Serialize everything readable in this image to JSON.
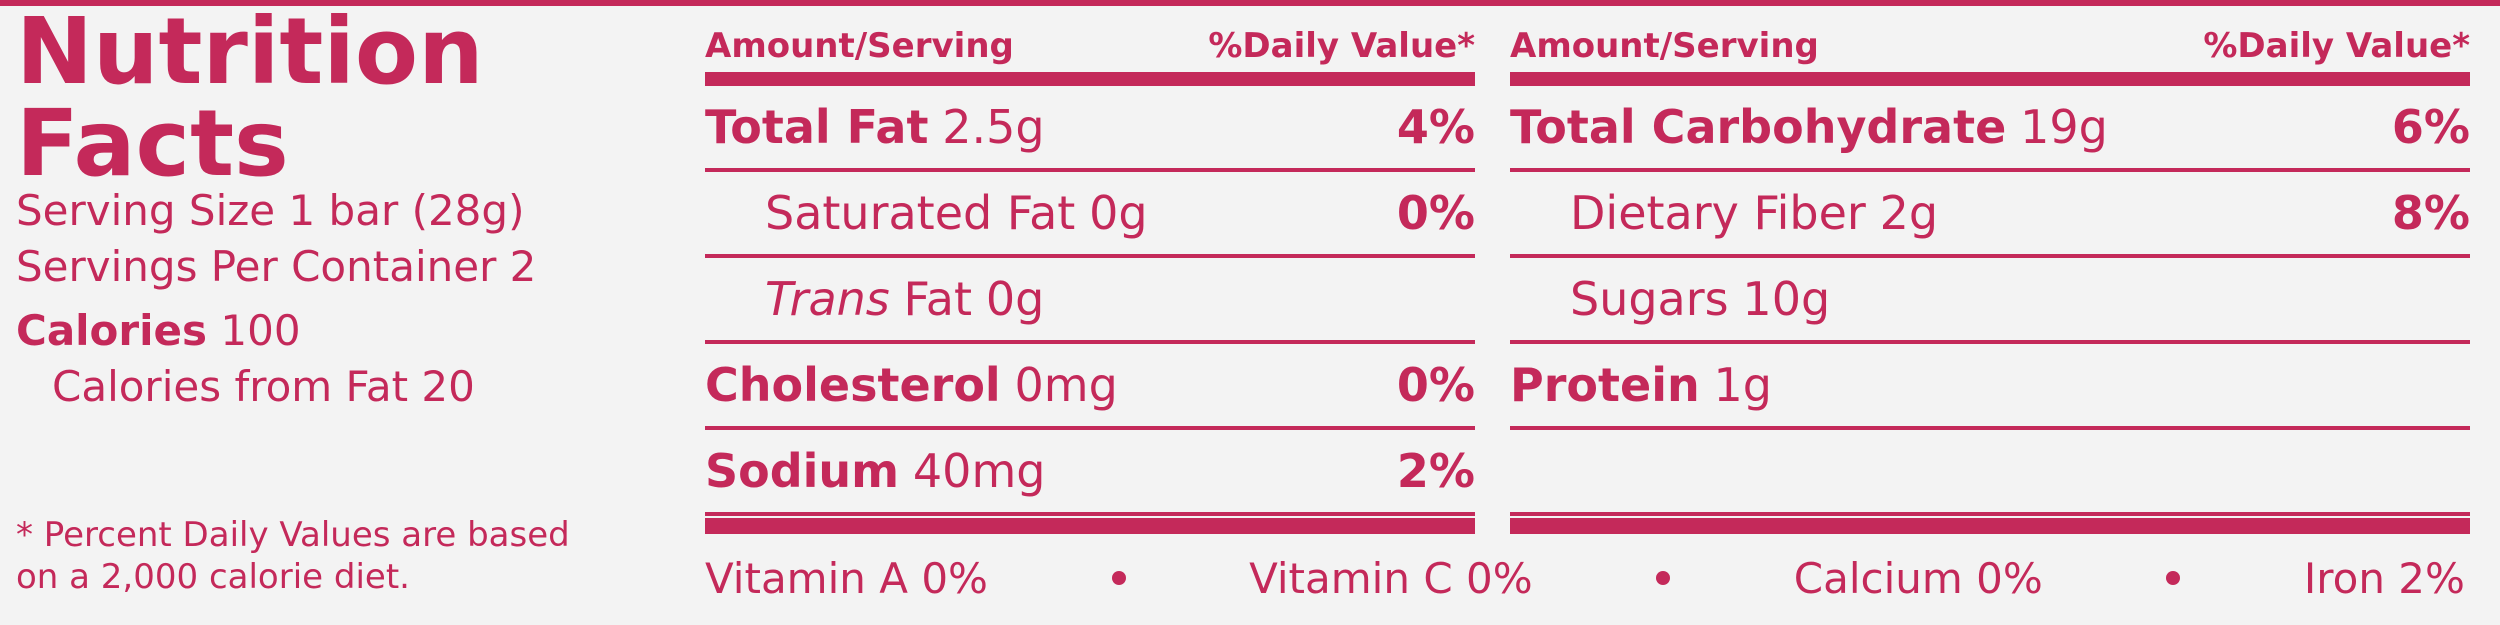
{
  "header": {
    "title": "Nutrition Facts",
    "serving_size": "Serving Size 1 bar (28g)",
    "servings_per_container": "Servings Per Container 2",
    "calories_label": "Calories",
    "calories": "100",
    "calories_from_fat": "Calories from Fat 20",
    "footnote": "* Percent Daily Values are based on a 2,000 calorie diet."
  },
  "columns": [
    {
      "amount_header": "Amount/Serving",
      "dv_header": "%Daily Value*",
      "rows": [
        {
          "name": "Total Fat",
          "amount": "2.5g",
          "dv": "4%",
          "level": "main"
        },
        {
          "name": "Saturated Fat",
          "amount": "0g",
          "dv": "0%",
          "level": "sub"
        },
        {
          "name_italic": "Trans",
          "name": "Fat",
          "amount": "0g",
          "level": "sub"
        },
        {
          "name": "Cholesterol",
          "amount": "0mg",
          "dv": "0%",
          "level": "main"
        },
        {
          "name": "Sodium",
          "amount": "40mg",
          "dv": "2%",
          "level": "main"
        }
      ]
    },
    {
      "amount_header": "Amount/Serving",
      "dv_header": "%Daily Value*",
      "rows": [
        {
          "name": "Total Carbohydrate",
          "amount": "19g",
          "dv": "6%",
          "level": "main"
        },
        {
          "name": "Dietary Fiber",
          "amount": "2g",
          "dv": "8%",
          "level": "sub"
        },
        {
          "name": "Sugars",
          "amount": "10g",
          "level": "sub"
        },
        {
          "name": "Protein",
          "amount": "1g",
          "level": "main"
        }
      ]
    }
  ],
  "vitamins": [
    "Vitamin A 0%",
    "Vitamin C 0%",
    "Calcium 0%",
    "Iron 2%"
  ]
}
